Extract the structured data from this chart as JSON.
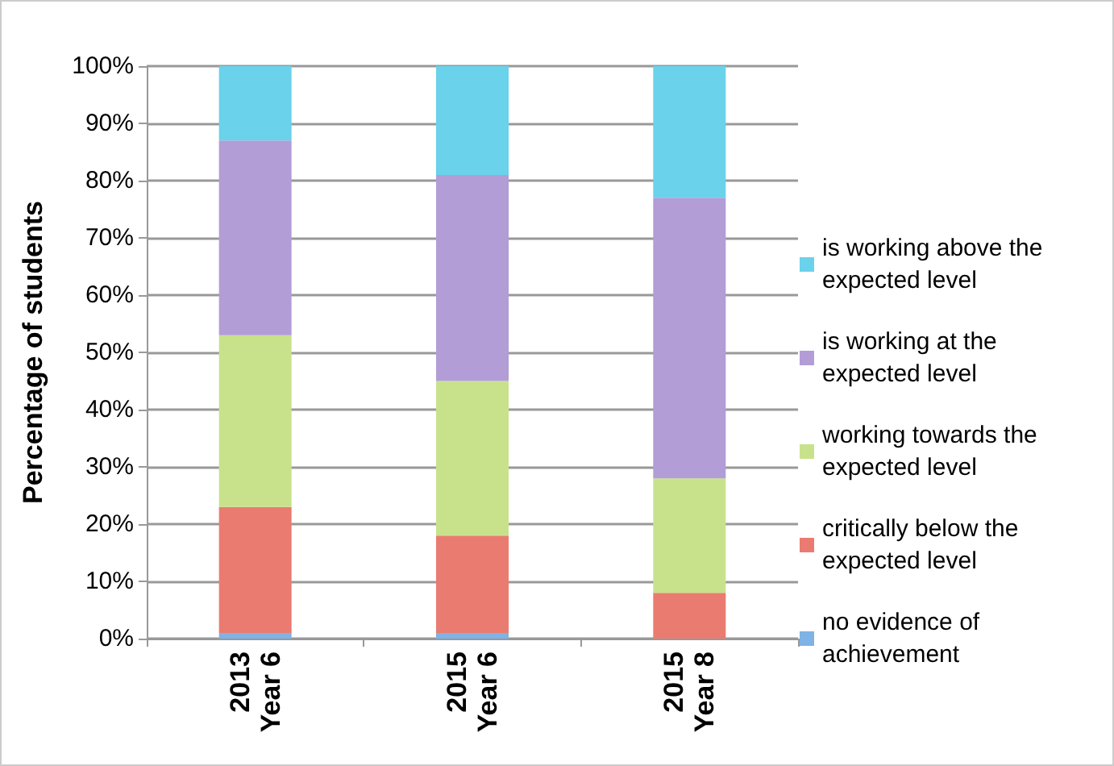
{
  "chart_data": {
    "type": "bar",
    "stacked": true,
    "ylabel": "Percentage of students",
    "categories": [
      "2013 Year 6",
      "2015 Year 6",
      "2015 Year 8"
    ],
    "series": [
      {
        "name": "no evidence of achievement",
        "color": "#7fb2e5",
        "values": [
          1,
          1,
          0
        ]
      },
      {
        "name": "critically below the expected level",
        "color": "#ea7b70",
        "values": [
          22,
          17,
          8
        ]
      },
      {
        "name": "working towards the expected level",
        "color": "#c8e28c",
        "values": [
          30,
          27,
          20
        ]
      },
      {
        "name": "is working at the expected level",
        "color": "#b29dd6",
        "values": [
          34,
          36,
          49
        ]
      },
      {
        "name": "is working above the expected level",
        "color": "#6ad2ea",
        "values": [
          13,
          19,
          23
        ]
      }
    ],
    "ylim": [
      0,
      100
    ],
    "yticks": [
      {
        "value": 0,
        "label": "0%"
      },
      {
        "value": 10,
        "label": "10%"
      },
      {
        "value": 20,
        "label": "20%"
      },
      {
        "value": 30,
        "label": "30%"
      },
      {
        "value": 40,
        "label": "40%"
      },
      {
        "value": 50,
        "label": "50%"
      },
      {
        "value": 60,
        "label": "60%"
      },
      {
        "value": 70,
        "label": "70%"
      },
      {
        "value": 80,
        "label": "80%"
      },
      {
        "value": 90,
        "label": "90%"
      },
      {
        "value": 100,
        "label": "100%"
      }
    ],
    "grid": "y",
    "legend": "right"
  }
}
